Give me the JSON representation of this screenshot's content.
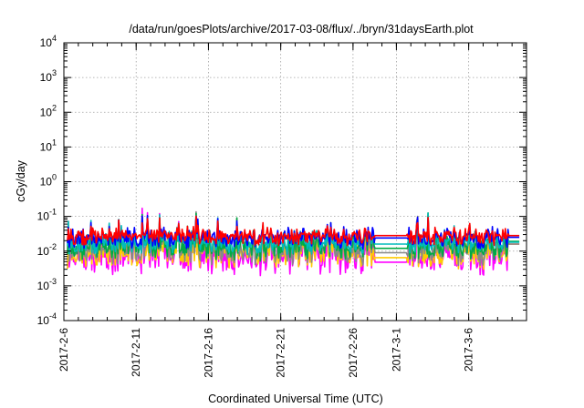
{
  "chart_data": {
    "type": "line",
    "title": "/data/run/goesPlots/archive/2017-03-08/flux/../bryn/31daysEarth.plot",
    "xlabel": "Coordinated Universal Time (UTC)",
    "ylabel": "cGy/day",
    "yscale": "log",
    "ylim": [
      0.0001,
      10000
    ],
    "xlim": [
      "2017-02-06",
      "2017-03-10"
    ],
    "grid": true,
    "y_ticks": [
      {
        "base": "10",
        "exp": "-4"
      },
      {
        "base": "10",
        "exp": "-3"
      },
      {
        "base": "10",
        "exp": "-2"
      },
      {
        "base": "10",
        "exp": "-1"
      },
      {
        "base": "10",
        "exp": "0"
      },
      {
        "base": "10",
        "exp": "1"
      },
      {
        "base": "10",
        "exp": "2"
      },
      {
        "base": "10",
        "exp": "3"
      },
      {
        "base": "10",
        "exp": "4"
      }
    ],
    "x_ticks": [
      "2017-2-6",
      "2017-2-11",
      "2017-2-16",
      "2017-2-21",
      "2017-2-26",
      "2017-3-1",
      "2017-3-6"
    ],
    "series": [
      {
        "color": "#ff0000",
        "base": 0.027,
        "spread": 0.9,
        "gap_value": 0.028,
        "end_value": 0.028
      },
      {
        "color": "#0000ff",
        "base": 0.024,
        "spread": 0.9,
        "gap_value": 0.024,
        "end_value": 0.025
      },
      {
        "color": "#00bbbb",
        "base": 0.018,
        "spread": 1.0,
        "gap_value": 0.016,
        "end_value": 0.018
      },
      {
        "color": "#00aa44",
        "base": 0.014,
        "spread": 1.1,
        "gap_value": 0.012,
        "end_value": 0.019
      },
      {
        "color": "#888888",
        "base": 0.011,
        "spread": 1.2,
        "gap_value": 0.009,
        "end_value": 0.016
      },
      {
        "color": "#ffcc00",
        "base": 0.009,
        "spread": 1.2,
        "gap_value": 0.0065,
        "end_value": 0.016
      },
      {
        "color": "#ff00ff",
        "base": 0.0075,
        "spread": 1.4,
        "gap_value": 0.0048,
        "end_value": 0.016
      }
    ],
    "data_gap": [
      "2017-02-27",
      "2017-02-29"
    ]
  }
}
